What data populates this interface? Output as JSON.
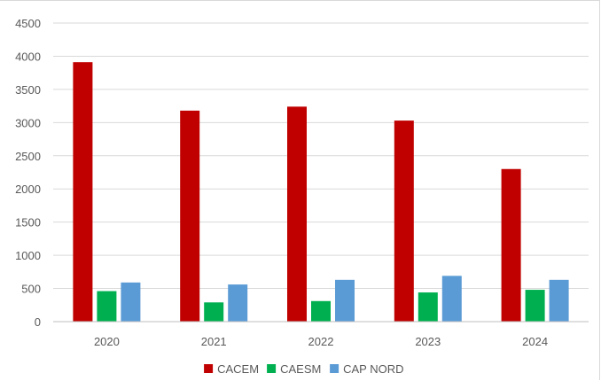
{
  "chart_data": {
    "type": "bar",
    "title": "",
    "xlabel": "",
    "ylabel": "",
    "categories": [
      "2020",
      "2021",
      "2022",
      "2023",
      "2024"
    ],
    "series": [
      {
        "name": "CACEM",
        "color": "#c00000",
        "values": [
          3910,
          3180,
          3240,
          3030,
          2300
        ]
      },
      {
        "name": "CAESM",
        "color": "#00b050",
        "values": [
          460,
          290,
          310,
          440,
          480
        ]
      },
      {
        "name": "CAP NORD",
        "color": "#5b9bd5",
        "values": [
          590,
          560,
          630,
          690,
          630
        ]
      }
    ],
    "ylim": [
      0,
      4500
    ],
    "yticks": [
      0,
      500,
      1000,
      1500,
      2000,
      2500,
      3000,
      3500,
      4000,
      4500
    ],
    "grid": true,
    "legend_position": "bottom"
  }
}
